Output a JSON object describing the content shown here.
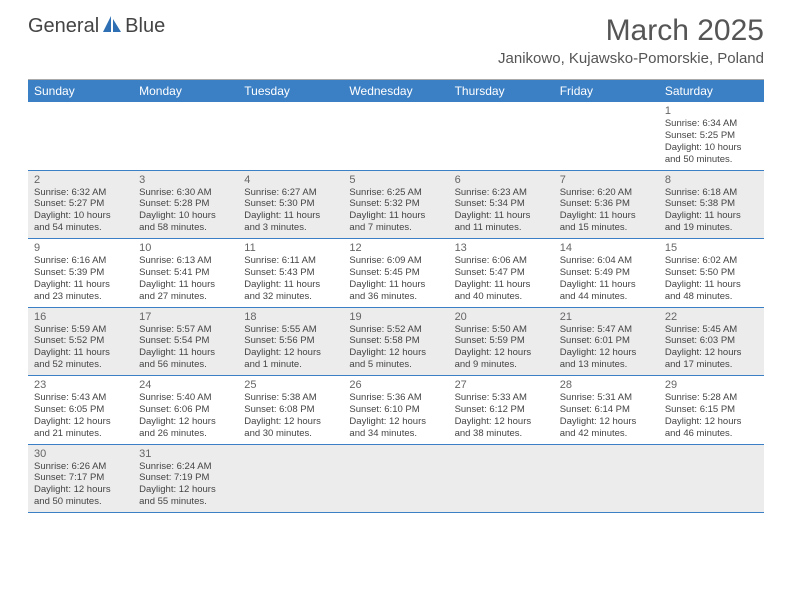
{
  "brand": {
    "name_part1": "General",
    "name_part2": "Blue",
    "logo_color": "#2f6fb3",
    "text_color": "#555555"
  },
  "header": {
    "title": "March 2025",
    "location": "Janikowo, Kujawsko-Pomorskie, Poland"
  },
  "colors": {
    "header_bg": "#3b7fc4",
    "row_border": "#3b7fc4",
    "alt_bg": "#ececec",
    "text": "#444444"
  },
  "weekdays": [
    "Sunday",
    "Monday",
    "Tuesday",
    "Wednesday",
    "Thursday",
    "Friday",
    "Saturday"
  ],
  "weeks": [
    [
      {
        "num": "",
        "lines": []
      },
      {
        "num": "",
        "lines": []
      },
      {
        "num": "",
        "lines": []
      },
      {
        "num": "",
        "lines": []
      },
      {
        "num": "",
        "lines": []
      },
      {
        "num": "",
        "lines": []
      },
      {
        "num": "1",
        "lines": [
          "Sunrise: 6:34 AM",
          "Sunset: 5:25 PM",
          "Daylight: 10 hours",
          "and 50 minutes."
        ]
      }
    ],
    [
      {
        "num": "2",
        "lines": [
          "Sunrise: 6:32 AM",
          "Sunset: 5:27 PM",
          "Daylight: 10 hours",
          "and 54 minutes."
        ]
      },
      {
        "num": "3",
        "lines": [
          "Sunrise: 6:30 AM",
          "Sunset: 5:28 PM",
          "Daylight: 10 hours",
          "and 58 minutes."
        ]
      },
      {
        "num": "4",
        "lines": [
          "Sunrise: 6:27 AM",
          "Sunset: 5:30 PM",
          "Daylight: 11 hours",
          "and 3 minutes."
        ]
      },
      {
        "num": "5",
        "lines": [
          "Sunrise: 6:25 AM",
          "Sunset: 5:32 PM",
          "Daylight: 11 hours",
          "and 7 minutes."
        ]
      },
      {
        "num": "6",
        "lines": [
          "Sunrise: 6:23 AM",
          "Sunset: 5:34 PM",
          "Daylight: 11 hours",
          "and 11 minutes."
        ]
      },
      {
        "num": "7",
        "lines": [
          "Sunrise: 6:20 AM",
          "Sunset: 5:36 PM",
          "Daylight: 11 hours",
          "and 15 minutes."
        ]
      },
      {
        "num": "8",
        "lines": [
          "Sunrise: 6:18 AM",
          "Sunset: 5:38 PM",
          "Daylight: 11 hours",
          "and 19 minutes."
        ]
      }
    ],
    [
      {
        "num": "9",
        "lines": [
          "Sunrise: 6:16 AM",
          "Sunset: 5:39 PM",
          "Daylight: 11 hours",
          "and 23 minutes."
        ]
      },
      {
        "num": "10",
        "lines": [
          "Sunrise: 6:13 AM",
          "Sunset: 5:41 PM",
          "Daylight: 11 hours",
          "and 27 minutes."
        ]
      },
      {
        "num": "11",
        "lines": [
          "Sunrise: 6:11 AM",
          "Sunset: 5:43 PM",
          "Daylight: 11 hours",
          "and 32 minutes."
        ]
      },
      {
        "num": "12",
        "lines": [
          "Sunrise: 6:09 AM",
          "Sunset: 5:45 PM",
          "Daylight: 11 hours",
          "and 36 minutes."
        ]
      },
      {
        "num": "13",
        "lines": [
          "Sunrise: 6:06 AM",
          "Sunset: 5:47 PM",
          "Daylight: 11 hours",
          "and 40 minutes."
        ]
      },
      {
        "num": "14",
        "lines": [
          "Sunrise: 6:04 AM",
          "Sunset: 5:49 PM",
          "Daylight: 11 hours",
          "and 44 minutes."
        ]
      },
      {
        "num": "15",
        "lines": [
          "Sunrise: 6:02 AM",
          "Sunset: 5:50 PM",
          "Daylight: 11 hours",
          "and 48 minutes."
        ]
      }
    ],
    [
      {
        "num": "16",
        "lines": [
          "Sunrise: 5:59 AM",
          "Sunset: 5:52 PM",
          "Daylight: 11 hours",
          "and 52 minutes."
        ]
      },
      {
        "num": "17",
        "lines": [
          "Sunrise: 5:57 AM",
          "Sunset: 5:54 PM",
          "Daylight: 11 hours",
          "and 56 minutes."
        ]
      },
      {
        "num": "18",
        "lines": [
          "Sunrise: 5:55 AM",
          "Sunset: 5:56 PM",
          "Daylight: 12 hours",
          "and 1 minute."
        ]
      },
      {
        "num": "19",
        "lines": [
          "Sunrise: 5:52 AM",
          "Sunset: 5:58 PM",
          "Daylight: 12 hours",
          "and 5 minutes."
        ]
      },
      {
        "num": "20",
        "lines": [
          "Sunrise: 5:50 AM",
          "Sunset: 5:59 PM",
          "Daylight: 12 hours",
          "and 9 minutes."
        ]
      },
      {
        "num": "21",
        "lines": [
          "Sunrise: 5:47 AM",
          "Sunset: 6:01 PM",
          "Daylight: 12 hours",
          "and 13 minutes."
        ]
      },
      {
        "num": "22",
        "lines": [
          "Sunrise: 5:45 AM",
          "Sunset: 6:03 PM",
          "Daylight: 12 hours",
          "and 17 minutes."
        ]
      }
    ],
    [
      {
        "num": "23",
        "lines": [
          "Sunrise: 5:43 AM",
          "Sunset: 6:05 PM",
          "Daylight: 12 hours",
          "and 21 minutes."
        ]
      },
      {
        "num": "24",
        "lines": [
          "Sunrise: 5:40 AM",
          "Sunset: 6:06 PM",
          "Daylight: 12 hours",
          "and 26 minutes."
        ]
      },
      {
        "num": "25",
        "lines": [
          "Sunrise: 5:38 AM",
          "Sunset: 6:08 PM",
          "Daylight: 12 hours",
          "and 30 minutes."
        ]
      },
      {
        "num": "26",
        "lines": [
          "Sunrise: 5:36 AM",
          "Sunset: 6:10 PM",
          "Daylight: 12 hours",
          "and 34 minutes."
        ]
      },
      {
        "num": "27",
        "lines": [
          "Sunrise: 5:33 AM",
          "Sunset: 6:12 PM",
          "Daylight: 12 hours",
          "and 38 minutes."
        ]
      },
      {
        "num": "28",
        "lines": [
          "Sunrise: 5:31 AM",
          "Sunset: 6:14 PM",
          "Daylight: 12 hours",
          "and 42 minutes."
        ]
      },
      {
        "num": "29",
        "lines": [
          "Sunrise: 5:28 AM",
          "Sunset: 6:15 PM",
          "Daylight: 12 hours",
          "and 46 minutes."
        ]
      }
    ],
    [
      {
        "num": "30",
        "lines": [
          "Sunrise: 6:26 AM",
          "Sunset: 7:17 PM",
          "Daylight: 12 hours",
          "and 50 minutes."
        ]
      },
      {
        "num": "31",
        "lines": [
          "Sunrise: 6:24 AM",
          "Sunset: 7:19 PM",
          "Daylight: 12 hours",
          "and 55 minutes."
        ]
      },
      {
        "num": "",
        "lines": []
      },
      {
        "num": "",
        "lines": []
      },
      {
        "num": "",
        "lines": []
      },
      {
        "num": "",
        "lines": []
      },
      {
        "num": "",
        "lines": []
      }
    ]
  ]
}
